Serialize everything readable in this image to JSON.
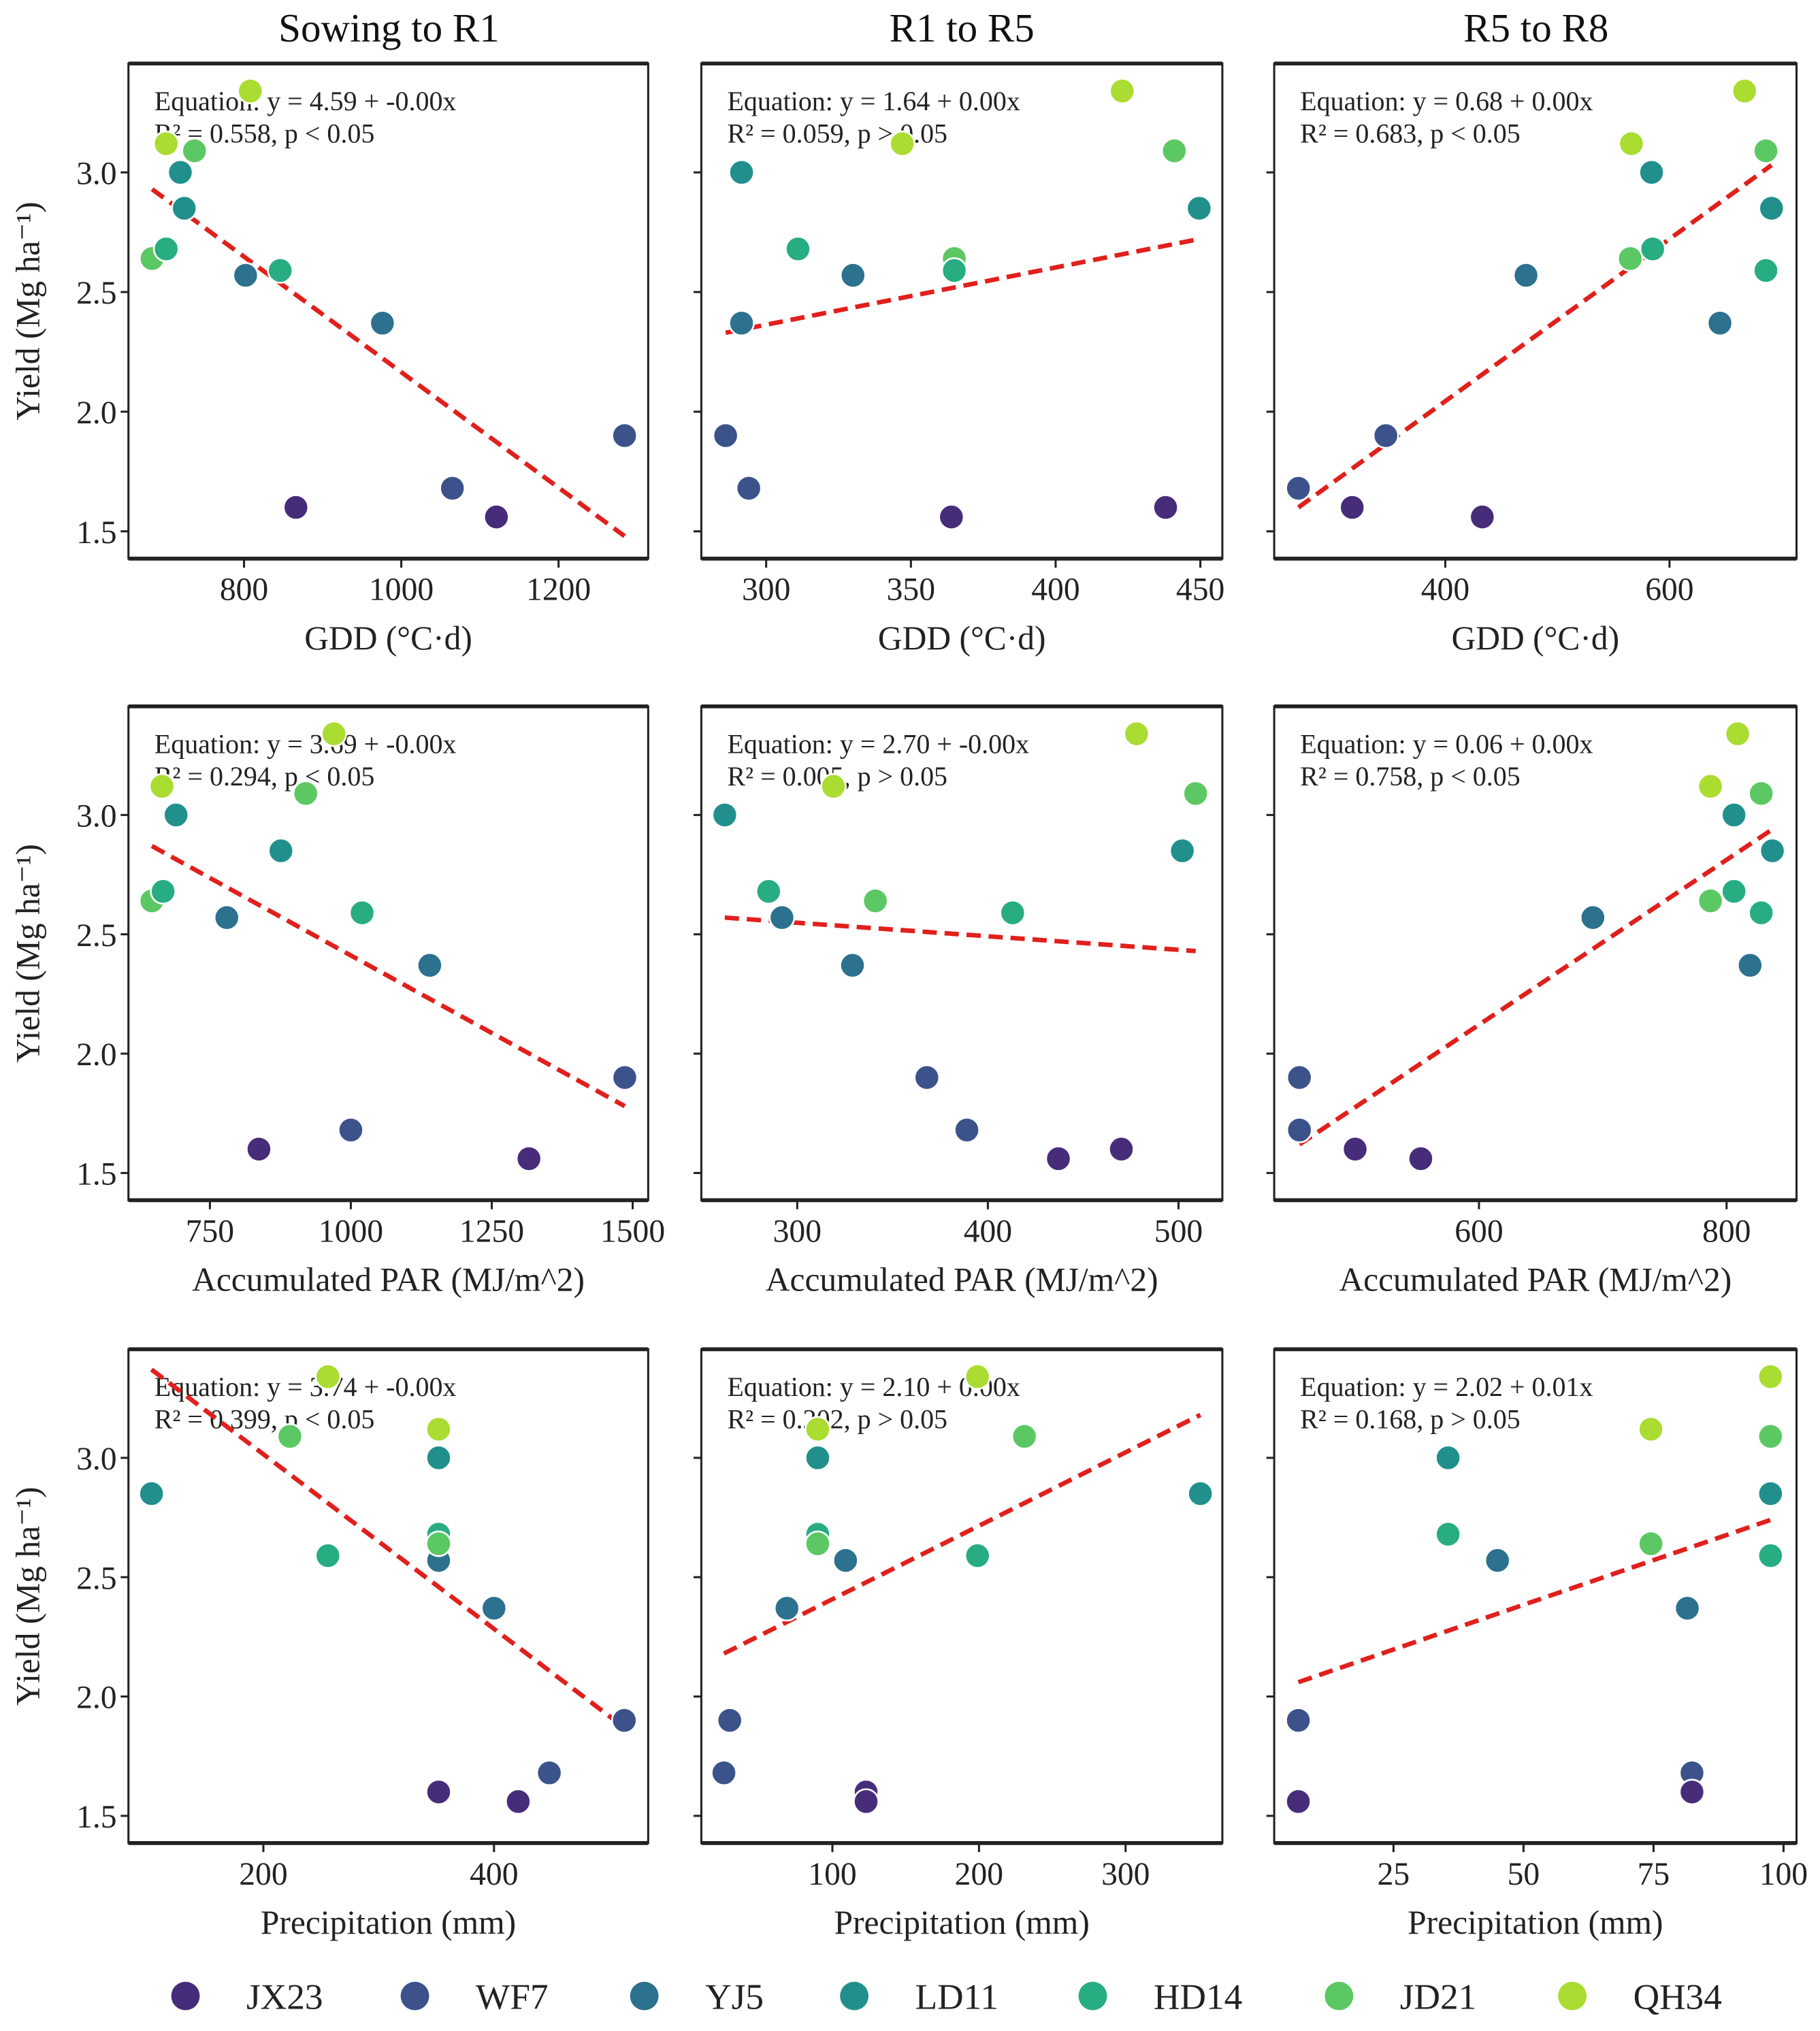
{
  "chart_data": {
    "type": "scatter",
    "column_titles": [
      "Sowing to R1",
      "R1 to R5",
      "R5 to R8"
    ],
    "ylabel": "Yield (Mg ha⁻¹)",
    "ylim": [
      1.386,
      3.455
    ],
    "yticks": [
      1.5,
      2.0,
      2.5,
      3.0
    ],
    "ytick_labels": [
      "1.5",
      "2.0",
      "2.5",
      "3.0"
    ],
    "fit_line_color": "#e0201c",
    "legend": {
      "placement": "bottom",
      "entries": [
        {
          "name": "JX23",
          "color": "#472c7a"
        },
        {
          "name": "WF7",
          "color": "#3b528b"
        },
        {
          "name": "YJ5",
          "color": "#2c718e"
        },
        {
          "name": "LD11",
          "color": "#21908d"
        },
        {
          "name": "HD14",
          "color": "#27ad81"
        },
        {
          "name": "JD21",
          "color": "#5cc863"
        },
        {
          "name": "QH34",
          "color": "#aadc32"
        }
      ]
    },
    "panels": [
      {
        "row": 0,
        "col": 0,
        "xlabel": "GDD (°C·d)",
        "xlim": [
          653,
          1314
        ],
        "xticks": [
          800,
          1000,
          1200
        ],
        "xtick_labels": [
          "800",
          "1000",
          "1200"
        ],
        "equation": "Equation: y = 4.59 + -0.00x",
        "stats": "R² = 0.558, p < 0.05",
        "fit": {
          "x": [
            683,
            1284
          ],
          "y": [
            2.93,
            1.48
          ]
        },
        "points": [
          [
            "QH34",
            808,
            3.34
          ],
          [
            "QH34",
            701,
            3.12
          ],
          [
            "JD21",
            737,
            3.09
          ],
          [
            "JD21",
            683,
            2.64
          ],
          [
            "LD11",
            719,
            3.0
          ],
          [
            "LD11",
            724,
            2.85
          ],
          [
            "HD14",
            701,
            2.68
          ],
          [
            "HD14",
            846,
            2.59
          ],
          [
            "YJ5",
            802,
            2.57
          ],
          [
            "YJ5",
            976,
            2.37
          ],
          [
            "WF7",
            1284,
            1.9
          ],
          [
            "WF7",
            1065,
            1.68
          ],
          [
            "JX23",
            866,
            1.6
          ],
          [
            "JX23",
            1121,
            1.56
          ]
        ]
      },
      {
        "row": 0,
        "col": 1,
        "xlabel": "GDD (°C·d)",
        "xlim": [
          277.6,
          457.6
        ],
        "xticks": [
          300,
          350,
          400,
          450
        ],
        "xtick_labels": [
          "300",
          "350",
          "400",
          "450"
        ],
        "equation": "Equation: y = 1.64 + 0.00x",
        "stats": "R² = 0.059, p > 0.05",
        "fit": {
          "x": [
            286,
            449
          ],
          "y": [
            2.33,
            2.72
          ]
        },
        "points": [
          [
            "QH34",
            423,
            3.34
          ],
          [
            "QH34",
            347,
            3.12
          ],
          [
            "JD21",
            441,
            3.09
          ],
          [
            "JD21",
            365,
            2.64
          ],
          [
            "LD11",
            291.5,
            3.0
          ],
          [
            "LD11",
            449.6,
            2.85
          ],
          [
            "HD14",
            311,
            2.68
          ],
          [
            "HD14",
            365,
            2.59
          ],
          [
            "YJ5",
            330,
            2.57
          ],
          [
            "YJ5",
            291.5,
            2.37
          ],
          [
            "WF7",
            286,
            1.9
          ],
          [
            "WF7",
            294,
            1.68
          ],
          [
            "JX23",
            364,
            1.56
          ],
          [
            "JX23",
            438,
            1.6
          ]
        ]
      },
      {
        "row": 0,
        "col": 2,
        "xlabel": "GDD (°C·d)",
        "xlim": [
          247.4,
          713.3
        ],
        "xticks": [
          400,
          600
        ],
        "xtick_labels": [
          "400",
          "600"
        ],
        "equation": "Equation: y = 0.68 + 0.00x",
        "stats": "R² = 0.683, p < 0.05",
        "fit": {
          "x": [
            269,
            691
          ],
          "y": [
            1.6,
            3.03
          ]
        },
        "points": [
          [
            "QH34",
            667,
            3.34
          ],
          [
            "QH34",
            566,
            3.12
          ],
          [
            "JD21",
            686,
            3.09
          ],
          [
            "JD21",
            565,
            2.64
          ],
          [
            "LD11",
            584,
            3.0
          ],
          [
            "LD11",
            691,
            2.85
          ],
          [
            "HD14",
            585,
            2.68
          ],
          [
            "HD14",
            686,
            2.59
          ],
          [
            "YJ5",
            472,
            2.57
          ],
          [
            "YJ5",
            645,
            2.37
          ],
          [
            "WF7",
            347,
            1.9
          ],
          [
            "WF7",
            269,
            1.68
          ],
          [
            "JX23",
            317,
            1.6
          ],
          [
            "JX23",
            433,
            1.56
          ]
        ]
      },
      {
        "row": 1,
        "col": 0,
        "xlabel": "Accumulated PAR (MJ/m^2)",
        "xlim": [
          605.5,
          1527.5
        ],
        "xticks": [
          750,
          1000,
          1250,
          1500
        ],
        "xtick_labels": [
          "750",
          "1000",
          "1250",
          "1500"
        ],
        "equation": "Equation: y = 3.69 + -0.00x",
        "stats": "R² = 0.294, p < 0.05",
        "fit": {
          "x": [
            647,
            1486
          ],
          "y": [
            2.87,
            1.78
          ]
        },
        "points": [
          [
            "QH34",
            970,
            3.34
          ],
          [
            "QH34",
            665,
            3.12
          ],
          [
            "JD21",
            920,
            3.09
          ],
          [
            "JD21",
            647,
            2.64
          ],
          [
            "LD11",
            690,
            3.0
          ],
          [
            "LD11",
            876,
            2.85
          ],
          [
            "HD14",
            667,
            2.68
          ],
          [
            "HD14",
            1020,
            2.59
          ],
          [
            "YJ5",
            780,
            2.57
          ],
          [
            "YJ5",
            1140,
            2.37
          ],
          [
            "WF7",
            1486,
            1.9
          ],
          [
            "WF7",
            1000,
            1.68
          ],
          [
            "JX23",
            837,
            1.6
          ],
          [
            "JX23",
            1316,
            1.56
          ]
        ]
      },
      {
        "row": 1,
        "col": 1,
        "xlabel": "Accumulated PAR (MJ/m^2)",
        "xlim": [
          249.7,
          523
        ],
        "xticks": [
          300,
          400,
          500
        ],
        "xtick_labels": [
          "300",
          "400",
          "500"
        ],
        "equation": "Equation: y = 2.70 + -0.00x",
        "stats": "R² = 0.005, p > 0.05",
        "fit": {
          "x": [
            262,
            509
          ],
          "y": [
            2.57,
            2.43
          ]
        },
        "points": [
          [
            "QH34",
            478,
            3.34
          ],
          [
            "QH34",
            319,
            3.12
          ],
          [
            "JD21",
            509,
            3.09
          ],
          [
            "JD21",
            341,
            2.64
          ],
          [
            "LD11",
            262,
            3.0
          ],
          [
            "LD11",
            502,
            2.85
          ],
          [
            "HD14",
            285,
            2.68
          ],
          [
            "HD14",
            413,
            2.59
          ],
          [
            "YJ5",
            292,
            2.57
          ],
          [
            "YJ5",
            329,
            2.37
          ],
          [
            "WF7",
            368,
            1.9
          ],
          [
            "WF7",
            389,
            1.68
          ],
          [
            "JX23",
            437,
            1.56
          ],
          [
            "JX23",
            470,
            1.6
          ]
        ]
      },
      {
        "row": 1,
        "col": 2,
        "xlabel": "Accumulated PAR (MJ/m^2)",
        "xlim": [
          434.6,
          856.5
        ],
        "xticks": [
          600,
          800
        ],
        "xtick_labels": [
          "600",
          "800"
        ],
        "equation": "Equation: y = 0.06 + 0.00x",
        "stats": "R² = 0.758, p < 0.05",
        "fit": {
          "x": [
            455,
            837
          ],
          "y": [
            1.62,
            2.94
          ]
        },
        "points": [
          [
            "QH34",
            809,
            3.34
          ],
          [
            "QH34",
            787,
            3.12
          ],
          [
            "JD21",
            828,
            3.09
          ],
          [
            "JD21",
            787,
            2.64
          ],
          [
            "LD11",
            806,
            3.0
          ],
          [
            "LD11",
            837,
            2.85
          ],
          [
            "HD14",
            806,
            2.68
          ],
          [
            "HD14",
            828,
            2.59
          ],
          [
            "YJ5",
            692,
            2.57
          ],
          [
            "YJ5",
            819,
            2.37
          ],
          [
            "WF7",
            455,
            1.9
          ],
          [
            "WF7",
            455,
            1.68
          ],
          [
            "JX23",
            500,
            1.6
          ],
          [
            "JX23",
            553,
            1.56
          ]
        ]
      },
      {
        "row": 2,
        "col": 0,
        "xlabel": "Precipitation (mm)",
        "xlim": [
          83,
          533.7
        ],
        "xticks": [
          200,
          400
        ],
        "xtick_labels": [
          "200",
          "400"
        ],
        "equation": "Equation: y = 3.74 + -0.00x",
        "stats": "R² = 0.399, p < 0.05",
        "fit": {
          "x": [
            103,
            513
          ],
          "y": [
            3.37,
            1.87
          ]
        },
        "points": [
          [
            "QH34",
            256,
            3.34
          ],
          [
            "QH34",
            352,
            3.12
          ],
          [
            "JD21",
            223,
            3.09
          ],
          [
            "LD11",
            352,
            3.0
          ],
          [
            "LD11",
            103,
            2.85
          ],
          [
            "HD14",
            352,
            2.68
          ],
          [
            "HD14",
            256,
            2.59
          ],
          [
            "YJ5",
            352,
            2.57
          ],
          [
            "JD21",
            352,
            2.64
          ],
          [
            "YJ5",
            400,
            2.37
          ],
          [
            "WF7",
            513,
            1.9
          ],
          [
            "WF7",
            448,
            1.68
          ],
          [
            "JX23",
            352,
            1.6
          ],
          [
            "JX23",
            421,
            1.56
          ]
        ]
      },
      {
        "row": 2,
        "col": 1,
        "xlabel": "Precipitation (mm)",
        "xlim": [
          10.6,
          366
        ],
        "xticks": [
          100,
          200,
          300
        ],
        "xtick_labels": [
          "100",
          "200",
          "300"
        ],
        "equation": "Equation: y = 2.10 + 0.00x",
        "stats": "R² = 0.202, p > 0.05",
        "fit": {
          "x": [
            26,
            351
          ],
          "y": [
            2.18,
            3.18
          ]
        },
        "points": [
          [
            "QH34",
            199,
            3.34
          ],
          [
            "QH34",
            90,
            3.12
          ],
          [
            "JD21",
            231,
            3.09
          ],
          [
            "LD11",
            90,
            3.0
          ],
          [
            "LD11",
            351,
            2.85
          ],
          [
            "HD14",
            90,
            2.68
          ],
          [
            "JD21",
            90,
            2.64
          ],
          [
            "HD14",
            199,
            2.59
          ],
          [
            "YJ5",
            109,
            2.57
          ],
          [
            "YJ5",
            69,
            2.37
          ],
          [
            "WF7",
            30,
            1.9
          ],
          [
            "WF7",
            26,
            1.68
          ],
          [
            "JX23",
            123,
            1.6
          ],
          [
            "JX23",
            123,
            1.56
          ]
        ]
      },
      {
        "row": 2,
        "col": 2,
        "xlabel": "Precipitation (mm)",
        "xlim": [
          2.06,
          102.5
        ],
        "xticks": [
          25,
          50,
          75,
          100
        ],
        "xtick_labels": [
          "25",
          "50",
          "75",
          "100"
        ],
        "equation": "Equation: y = 2.02 + 0.01x",
        "stats": "R² = 0.168, p > 0.05",
        "fit": {
          "x": [
            6.7,
            97.5
          ],
          "y": [
            2.06,
            2.74
          ]
        },
        "points": [
          [
            "QH34",
            97.5,
            3.34
          ],
          [
            "QH34",
            74.5,
            3.12
          ],
          [
            "JD21",
            97.5,
            3.09
          ],
          [
            "JD21",
            74.5,
            2.64
          ],
          [
            "LD11",
            35.5,
            3.0
          ],
          [
            "LD11",
            97.5,
            2.85
          ],
          [
            "HD14",
            35.5,
            2.68
          ],
          [
            "HD14",
            97.5,
            2.59
          ],
          [
            "YJ5",
            45,
            2.57
          ],
          [
            "YJ5",
            81.5,
            2.37
          ],
          [
            "WF7",
            6.7,
            1.9
          ],
          [
            "WF7",
            82.4,
            1.68
          ],
          [
            "JX23",
            6.7,
            1.56
          ],
          [
            "JX23",
            82.4,
            1.6
          ]
        ]
      }
    ]
  }
}
